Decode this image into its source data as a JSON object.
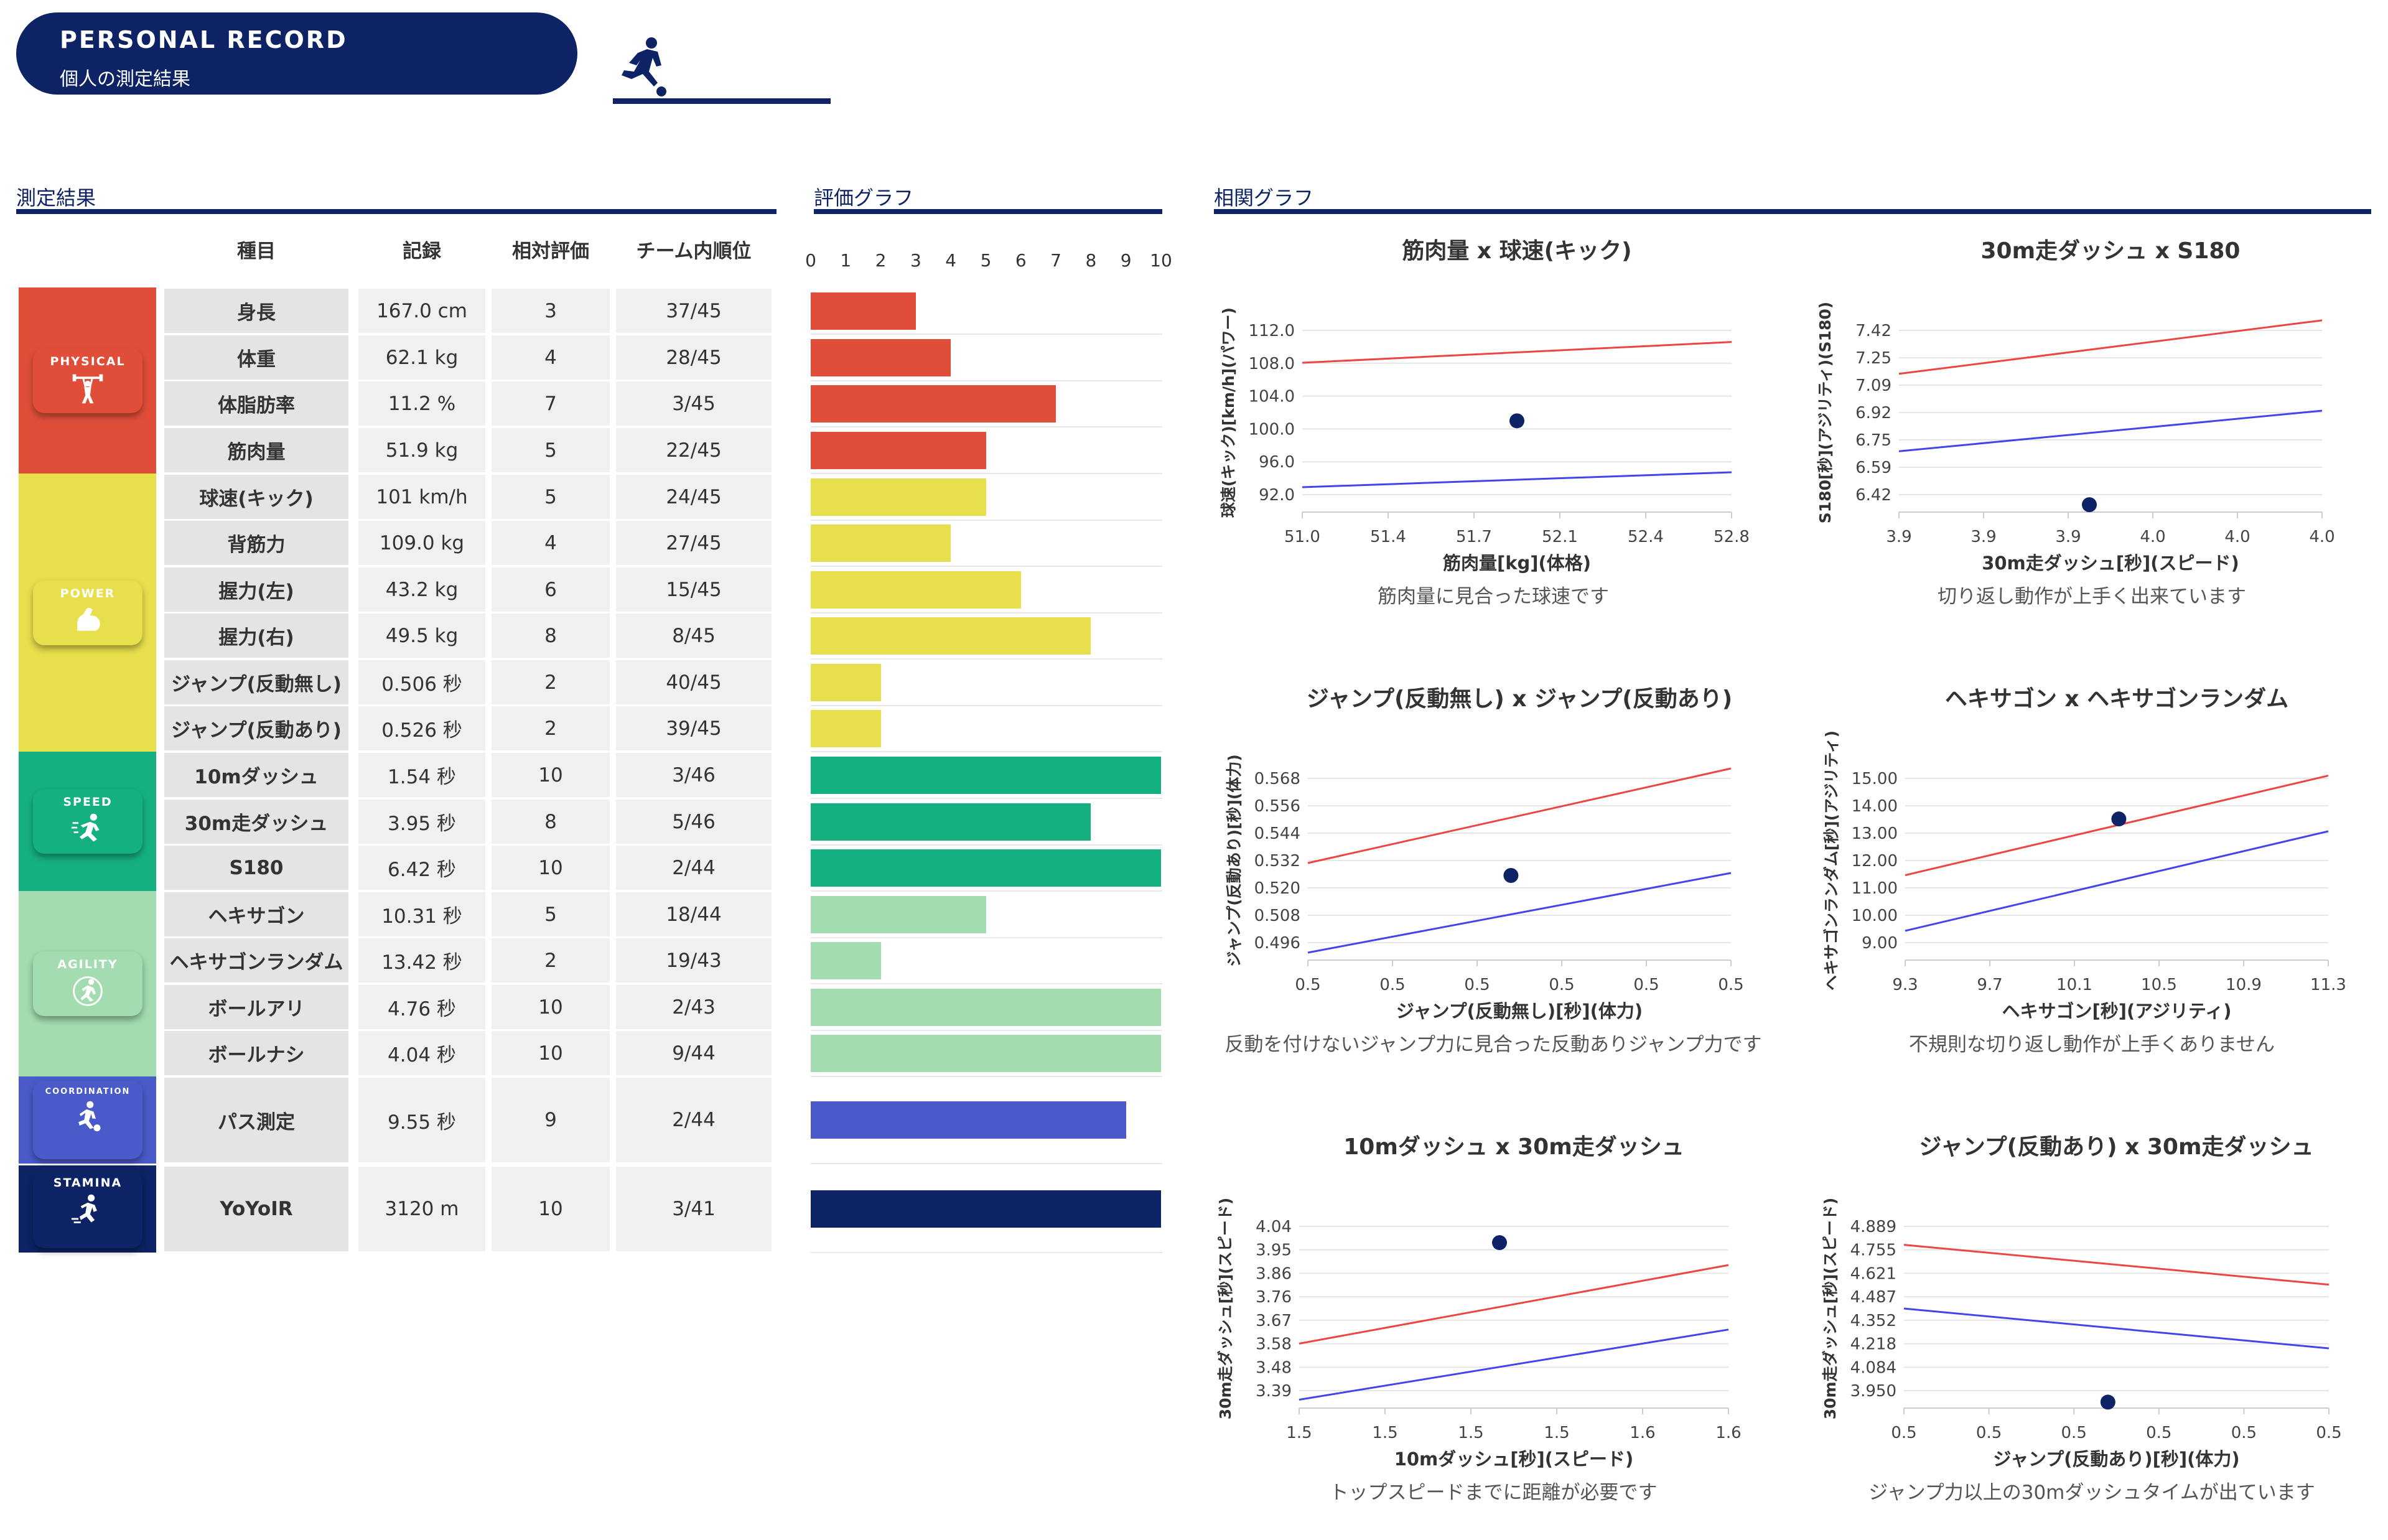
{
  "header": {
    "title": "PERSONAL RECORD",
    "subtitle": "個人の測定結果"
  },
  "sections": {
    "results": "測定結果",
    "eval": "評価グラフ",
    "corr": "相関グラフ"
  },
  "table": {
    "headers": [
      "種目",
      "記録",
      "相対評価",
      "チーム内順位"
    ],
    "categories": [
      {
        "label": "PHYSICAL",
        "color": "#e04e3a",
        "icon": "weightlifting-icon"
      },
      {
        "label": "POWER",
        "color": "#e8df4c",
        "icon": "flexing-arm-icon"
      },
      {
        "label": "SPEED",
        "color": "#15b081",
        "icon": "sprinter-icon"
      },
      {
        "label": "AGILITY",
        "color": "#a2dcb0",
        "icon": "agility-runner-icon"
      },
      {
        "label": "COORDINATION",
        "color": "#4a5ac8",
        "icon": "kicker-icon"
      },
      {
        "label": "STAMINA",
        "color": "#0d2366",
        "icon": "runner-icon"
      }
    ],
    "rows": [
      {
        "name": "身長",
        "record": "167.0 cm",
        "eval": 3,
        "rank": "37/45"
      },
      {
        "name": "体重",
        "record": "62.1 kg",
        "eval": 4,
        "rank": "28/45"
      },
      {
        "name": "体脂肪率",
        "record": "11.2 %",
        "eval": 7,
        "rank": "3/45"
      },
      {
        "name": "筋肉量",
        "record": "51.9 kg",
        "eval": 5,
        "rank": "22/45"
      },
      {
        "name": "球速(キック)",
        "record": "101 km/h",
        "eval": 5,
        "rank": "24/45"
      },
      {
        "name": "背筋力",
        "record": "109.0 kg",
        "eval": 4,
        "rank": "27/45"
      },
      {
        "name": "握力(左)",
        "record": "43.2 kg",
        "eval": 6,
        "rank": "15/45"
      },
      {
        "name": "握力(右)",
        "record": "49.5 kg",
        "eval": 8,
        "rank": "8/45"
      },
      {
        "name": "ジャンプ(反動無し)",
        "record": "0.506 秒",
        "eval": 2,
        "rank": "40/45"
      },
      {
        "name": "ジャンプ(反動あり)",
        "record": "0.526 秒",
        "eval": 2,
        "rank": "39/45"
      },
      {
        "name": "10mダッシュ",
        "record": "1.54 秒",
        "eval": 10,
        "rank": "3/46"
      },
      {
        "name": "30m走ダッシュ",
        "record": "3.95 秒",
        "eval": 8,
        "rank": "5/46"
      },
      {
        "name": "S180",
        "record": "6.42 秒",
        "eval": 10,
        "rank": "2/44"
      },
      {
        "name": "ヘキサゴン",
        "record": "10.31 秒",
        "eval": 5,
        "rank": "18/44"
      },
      {
        "name": "ヘキサゴンランダム",
        "record": "13.42 秒",
        "eval": 2,
        "rank": "19/43"
      },
      {
        "name": "ボールアリ",
        "record": "4.76 秒",
        "eval": 10,
        "rank": "2/43"
      },
      {
        "name": "ボールナシ",
        "record": "4.04 秒",
        "eval": 10,
        "rank": "9/44"
      },
      {
        "name": "パス測定",
        "record": "9.55 秒",
        "eval": 9,
        "rank": "2/44"
      },
      {
        "name": "YoYoIR",
        "record": "3120 m",
        "eval": 10,
        "rank": "3/41"
      }
    ]
  },
  "chart_data": [
    {
      "type": "bar",
      "orientation": "horizontal",
      "title": "評価グラフ",
      "categories": [
        "身長",
        "体重",
        "体脂肪率",
        "筋肉量",
        "球速(キック)",
        "背筋力",
        "握力(左)",
        "握力(右)",
        "ジャンプ(反動無し)",
        "ジャンプ(反動あり)",
        "10mダッシュ",
        "30m走ダッシュ",
        "S180",
        "ヘキサゴン",
        "ヘキサゴンランダム",
        "ボールアリ",
        "ボールナシ",
        "パス測定",
        "YoYoIR"
      ],
      "values": [
        3,
        4,
        7,
        5,
        5,
        4,
        6,
        8,
        2,
        2,
        10,
        8,
        10,
        5,
        2,
        10,
        10,
        9,
        10
      ],
      "xlim": [
        0,
        10
      ],
      "xticks": [
        "0",
        "1",
        "2",
        "3",
        "4",
        "5",
        "6",
        "7",
        "8",
        "9",
        "10"
      ],
      "colors": [
        "#e04e3a",
        "#e04e3a",
        "#e04e3a",
        "#e04e3a",
        "#e8df4c",
        "#e8df4c",
        "#e8df4c",
        "#e8df4c",
        "#e8df4c",
        "#e8df4c",
        "#15b081",
        "#15b081",
        "#15b081",
        "#a2dcb0",
        "#a2dcb0",
        "#a2dcb0",
        "#a2dcb0",
        "#4a5ac8",
        "#0d2366"
      ]
    },
    {
      "type": "scatter",
      "title": "筋肉量 x 球速(キック)",
      "xlabel": "筋肉量[kg](体格)",
      "ylabel": "球速(キック)[km/h](パワー)",
      "xticks": [
        "51.0",
        "51.4",
        "51.7",
        "52.1",
        "52.4",
        "52.8"
      ],
      "yticks": [
        "112.0",
        "108.0",
        "104.0",
        "100.0",
        "96.0",
        "92.0"
      ],
      "xlim": [
        51.0,
        52.8
      ],
      "ylim": [
        90.0,
        114.0
      ],
      "point": {
        "x": 51.9,
        "y": 101
      },
      "upper_line": [
        [
          51.0,
          108.0
        ],
        [
          52.8,
          110.5
        ]
      ],
      "lower_line": [
        [
          51.0,
          93.0
        ],
        [
          52.8,
          94.8
        ]
      ],
      "comment": "筋肉量に見合った球速です"
    },
    {
      "type": "scatter",
      "title": "30m走ダッシュ x S180",
      "xlabel": "30m走ダッシュ[秒](スピード)",
      "ylabel": "S180[秒](アジリティ)(S180)",
      "xticks": [
        "3.9",
        "3.9",
        "3.9",
        "4.0",
        "4.0",
        "4.0"
      ],
      "yticks": [
        "7.42",
        "7.25",
        "7.09",
        "6.92",
        "6.75",
        "6.59",
        "6.42"
      ],
      "xlim": [
        3.86,
        4.06
      ],
      "ylim": [
        6.38,
        7.46
      ],
      "point": {
        "x": 3.95,
        "y": 6.42
      },
      "upper_line": [
        [
          3.86,
          7.13
        ],
        [
          4.06,
          7.42
        ]
      ],
      "lower_line": [
        [
          3.86,
          6.71
        ],
        [
          4.06,
          6.93
        ]
      ],
      "comment": "切り返し動作が上手く出来ています"
    },
    {
      "type": "scatter",
      "title": "ジャンプ(反動無し) x ジャンプ(反動あり)",
      "xlabel": "ジャンプ(反動無し)[秒](体力)",
      "ylabel": "ジャンプ(反動あり)[秒](体力)",
      "xticks": [
        "0.5",
        "0.5",
        "0.5",
        "0.5",
        "0.5",
        "0.5"
      ],
      "yticks": [
        "0.568",
        "0.556",
        "0.544",
        "0.532",
        "0.520",
        "0.508",
        "0.496"
      ],
      "xlim": [
        0.47,
        0.545
      ],
      "ylim": [
        0.492,
        0.572
      ],
      "point": {
        "x": 0.506,
        "y": 0.526
      },
      "upper_line": [
        [
          0.47,
          0.531
        ],
        [
          0.545,
          0.569
        ]
      ],
      "lower_line": [
        [
          0.47,
          0.495
        ],
        [
          0.545,
          0.527
        ]
      ],
      "comment": "反動を付けないジャンプ力に見合った反動ありジャンプ力です"
    },
    {
      "type": "scatter",
      "title": "ヘキサゴン x ヘキサゴンランダム",
      "xlabel": "ヘキサゴン[秒](アジリティ)",
      "ylabel": "ヘキサゴンランダム[秒](アジリティ)",
      "xticks": [
        "9.3",
        "9.7",
        "10.1",
        "10.5",
        "10.9",
        "11.3"
      ],
      "yticks": [
        "15.00",
        "14.00",
        "13.00",
        "12.00",
        "11.00",
        "10.00",
        "9.00"
      ],
      "xlim": [
        9.3,
        11.3
      ],
      "ylim": [
        8.6,
        15.4
      ],
      "point": {
        "x": 10.31,
        "y": 13.42
      },
      "upper_line": [
        [
          9.3,
          11.5
        ],
        [
          11.3,
          14.9
        ]
      ],
      "lower_line": [
        [
          9.3,
          9.6
        ],
        [
          11.3,
          13.0
        ]
      ],
      "comment": "不規則な切り返し動作が上手くありません"
    },
    {
      "type": "scatter",
      "title": "10mダッシュ x 30m走ダッシュ",
      "xlabel": "10mダッシュ[秒](スピード)",
      "ylabel": "30m走ダッシュ[秒](スピード)",
      "xticks": [
        "1.5",
        "1.5",
        "1.5",
        "1.5",
        "1.6",
        "1.6"
      ],
      "yticks": [
        "4.04",
        "3.95",
        "3.86",
        "3.76",
        "3.67",
        "3.58",
        "3.48",
        "3.39"
      ],
      "xlim": [
        1.47,
        1.62
      ],
      "ylim": [
        3.36,
        4.07
      ],
      "point": {
        "x": 1.54,
        "y": 3.95
      },
      "upper_line": [
        [
          1.47,
          3.59
        ],
        [
          1.62,
          3.87
        ]
      ],
      "lower_line": [
        [
          1.47,
          3.39
        ],
        [
          1.62,
          3.64
        ]
      ],
      "comment": "トップスピードまでに距離が必要です"
    },
    {
      "type": "scatter",
      "title": "ジャンプ(反動あり) x 30m走ダッシュ",
      "xlabel": "ジャンプ(反動あり)[秒](体力)",
      "ylabel": "30m走ダッシュ[秒](スピード)",
      "xticks": [
        "0.5",
        "0.5",
        "0.5",
        "0.5",
        "0.5",
        "0.5"
      ],
      "yticks": [
        "4.889",
        "4.755",
        "4.621",
        "4.487",
        "4.352",
        "4.218",
        "4.084",
        "3.950"
      ],
      "xlim": [
        0.49,
        0.565
      ],
      "ylim": [
        3.92,
        4.92
      ],
      "point": {
        "x": 0.526,
        "y": 3.95
      },
      "upper_line": [
        [
          0.49,
          4.74
        ],
        [
          0.565,
          4.54
        ]
      ],
      "lower_line": [
        [
          0.49,
          4.42
        ],
        [
          0.565,
          4.22
        ]
      ],
      "comment": "ジャンプ力以上の30mダッシュタイムが出ています"
    }
  ]
}
